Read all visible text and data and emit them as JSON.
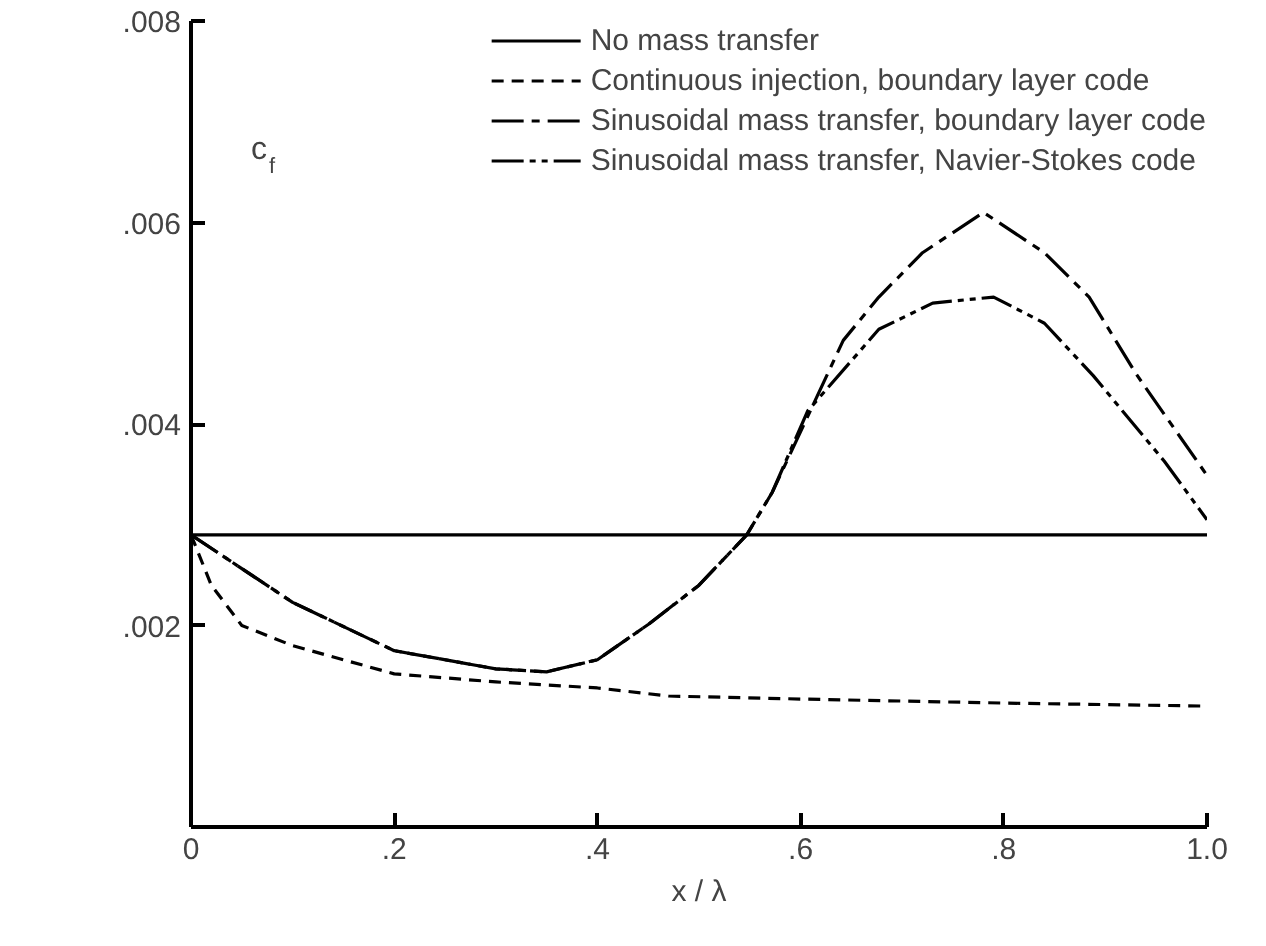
{
  "chart_data": {
    "type": "line",
    "xlabel": "x / λ",
    "ylabel": "c$_{f}$",
    "xlim": [
      0,
      1.0
    ],
    "ylim": [
      0,
      0.008
    ],
    "xticks": [
      {
        "value": 0,
        "label": "0"
      },
      {
        "value": 0.2,
        "label": ".2"
      },
      {
        "value": 0.4,
        "label": ".4"
      },
      {
        "value": 0.6,
        "label": ".6"
      },
      {
        "value": 0.8,
        "label": ".8"
      },
      {
        "value": 1.0,
        "label": "1.0"
      }
    ],
    "yticks": [
      {
        "value": 0.002,
        "label": ".002"
      },
      {
        "value": 0.004,
        "label": ".004"
      },
      {
        "value": 0.006,
        "label": ".006"
      },
      {
        "value": 0.008,
        "label": ".008"
      }
    ],
    "grid": false,
    "legend": "top",
    "marker": "none",
    "series": [
      {
        "name": "No mass transfer",
        "color": "#000000",
        "line_style": "solid",
        "x": [
          0,
          1.0
        ],
        "values": [
          0.0029,
          0.0029
        ]
      },
      {
        "name": "Continuous injection, boundary layer code",
        "color": "#000000",
        "line_style": "dashed",
        "x": [
          0,
          0.02,
          0.05,
          0.1,
          0.2,
          0.3,
          0.4,
          0.47,
          0.6,
          0.8,
          1.0
        ],
        "values": [
          0.0029,
          0.0024,
          0.002,
          0.0018,
          0.00152,
          0.00144,
          0.00138,
          0.0013,
          0.00127,
          0.00123,
          0.0012
        ]
      },
      {
        "name": "Sinusoidal mass transfer, boundary layer code",
        "color": "#000000",
        "line_style": "dashdot",
        "x": [
          0,
          0.1,
          0.2,
          0.3,
          0.35,
          0.4,
          0.45,
          0.5,
          0.547,
          0.572,
          0.642,
          0.677,
          0.72,
          0.78,
          0.84,
          0.884,
          0.93,
          1.0
        ],
        "values": [
          0.0029,
          0.00223,
          0.00175,
          0.00157,
          0.00154,
          0.00166,
          0.00201,
          0.0024,
          0.0029,
          0.00332,
          0.00483,
          0.00526,
          0.0057,
          0.0061,
          0.0057,
          0.00526,
          0.0045,
          0.00349
        ]
      },
      {
        "name": "Sinusoidal mass transfer, Navier-Stokes code",
        "color": "#000000",
        "line_style": "dashdotdot",
        "x": [
          0,
          0.1,
          0.2,
          0.3,
          0.35,
          0.4,
          0.45,
          0.5,
          0.547,
          0.572,
          0.607,
          0.677,
          0.73,
          0.79,
          0.84,
          0.888,
          0.958,
          1.0
        ],
        "values": [
          0.0029,
          0.00223,
          0.00175,
          0.00157,
          0.00154,
          0.00166,
          0.00201,
          0.0024,
          0.0029,
          0.00332,
          0.00413,
          0.00494,
          0.0052,
          0.00526,
          0.005,
          0.00448,
          0.00363,
          0.00305
        ]
      }
    ]
  }
}
